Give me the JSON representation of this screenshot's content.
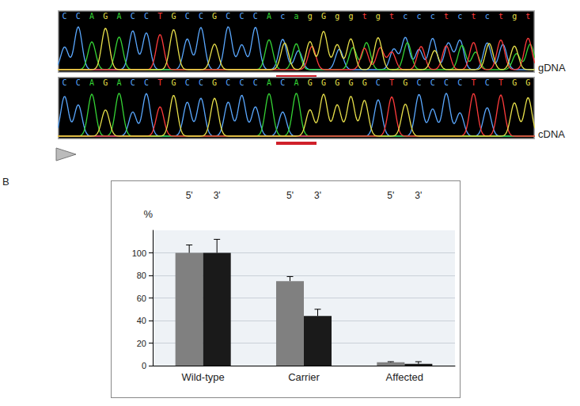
{
  "panel_label": "B",
  "chromatograms": [
    {
      "label": "gDNA",
      "sequence": "CCAGACCTGCCGCCCAcagGggtgtccctctctgt",
      "highlight": [
        16,
        19
      ]
    },
    {
      "label": "cDNA",
      "sequence": "CCAGACCTGCCGCCCACAGGGGGCTGCCCCTCTGG",
      "highlight": [
        16,
        19
      ]
    }
  ],
  "chart_data": {
    "type": "bar",
    "categories": [
      "Wild-type",
      "Carrier",
      "Affected"
    ],
    "series": [
      {
        "name": "5'",
        "color": "#808080",
        "values": [
          100,
          75,
          3
        ],
        "error": [
          7,
          4,
          0.5
        ]
      },
      {
        "name": "3'",
        "color": "#1a1a1a",
        "values": [
          100,
          44,
          1.5
        ],
        "error": [
          12,
          6,
          2
        ]
      }
    ],
    "ylabel": "%",
    "ylim": [
      0,
      120
    ],
    "yticks": [
      0,
      20,
      40,
      60,
      80,
      100
    ],
    "grid": true
  }
}
